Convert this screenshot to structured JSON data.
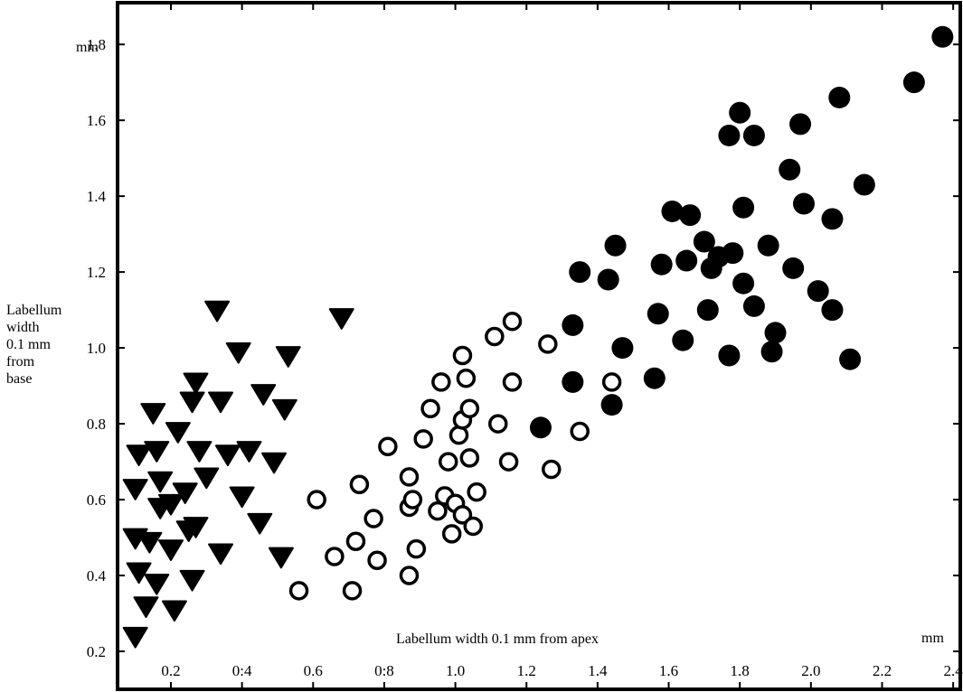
{
  "chart_data": {
    "type": "scatter",
    "title": "",
    "xlabel": "Labellum width 0.1 mm from apex",
    "ylabel": [
      "Labellum",
      "width",
      "0.1 mm",
      "from",
      "base"
    ],
    "x_unit": "mm",
    "y_unit": "mm",
    "xlim": [
      0.05,
      2.42
    ],
    "ylim": [
      0.1,
      1.91
    ],
    "x_ticks": [
      0.2,
      0.4,
      0.6,
      0.8,
      1.0,
      1.2,
      1.4,
      1.6,
      1.8,
      2.0,
      2.2,
      2.4
    ],
    "x_tick_labels": [
      "0.2",
      "0:4",
      "0.6",
      "0:8",
      "1.0",
      "1.2",
      "1.4",
      "1.6",
      "1.8",
      "2.0",
      "2.2",
      "2.4"
    ],
    "y_ticks": [
      0.2,
      0.4,
      0.6,
      0.8,
      1.0,
      1.2,
      1.4,
      1.6,
      1.8
    ],
    "y_tick_labels": [
      "0.2",
      "0.4",
      "0.6",
      "0.8",
      "1.0",
      "1.2",
      "1.4",
      "1.6",
      "1.8"
    ],
    "grid": false,
    "legend": "none",
    "series": [
      {
        "marker": "filled-triangle-down",
        "color": "#000000",
        "points": [
          [
            0.1,
            0.24
          ],
          [
            0.1,
            0.5
          ],
          [
            0.1,
            0.63
          ],
          [
            0.11,
            0.41
          ],
          [
            0.11,
            0.72
          ],
          [
            0.13,
            0.32
          ],
          [
            0.14,
            0.49
          ],
          [
            0.15,
            0.83
          ],
          [
            0.16,
            0.73
          ],
          [
            0.16,
            0.38
          ],
          [
            0.17,
            0.65
          ],
          [
            0.17,
            0.58
          ],
          [
            0.2,
            0.47
          ],
          [
            0.2,
            0.59
          ],
          [
            0.21,
            0.31
          ],
          [
            0.22,
            0.78
          ],
          [
            0.24,
            0.62
          ],
          [
            0.25,
            0.52
          ],
          [
            0.26,
            0.39
          ],
          [
            0.26,
            0.86
          ],
          [
            0.27,
            0.91
          ],
          [
            0.27,
            0.53
          ],
          [
            0.28,
            0.73
          ],
          [
            0.3,
            0.66
          ],
          [
            0.33,
            1.1
          ],
          [
            0.34,
            0.46
          ],
          [
            0.34,
            0.86
          ],
          [
            0.36,
            0.72
          ],
          [
            0.39,
            0.99
          ],
          [
            0.4,
            0.61
          ],
          [
            0.42,
            0.73
          ],
          [
            0.45,
            0.54
          ],
          [
            0.46,
            0.88
          ],
          [
            0.49,
            0.7
          ],
          [
            0.51,
            0.45
          ],
          [
            0.52,
            0.84
          ],
          [
            0.53,
            0.98
          ],
          [
            0.68,
            1.08
          ]
        ]
      },
      {
        "marker": "open-circle",
        "color": "#000000",
        "points": [
          [
            0.56,
            0.36
          ],
          [
            0.61,
            0.6
          ],
          [
            0.66,
            0.45
          ],
          [
            0.71,
            0.36
          ],
          [
            0.72,
            0.49
          ],
          [
            0.73,
            0.64
          ],
          [
            0.77,
            0.55
          ],
          [
            0.78,
            0.44
          ],
          [
            0.81,
            0.74
          ],
          [
            0.87,
            0.4
          ],
          [
            0.87,
            0.58
          ],
          [
            0.87,
            0.66
          ],
          [
            0.88,
            0.6
          ],
          [
            0.89,
            0.47
          ],
          [
            0.91,
            0.76
          ],
          [
            0.93,
            0.84
          ],
          [
            0.95,
            0.57
          ],
          [
            0.96,
            0.91
          ],
          [
            0.97,
            0.61
          ],
          [
            0.98,
            0.7
          ],
          [
            0.99,
            0.51
          ],
          [
            1.0,
            0.59
          ],
          [
            1.01,
            0.77
          ],
          [
            1.02,
            0.98
          ],
          [
            1.02,
            0.81
          ],
          [
            1.02,
            0.56
          ],
          [
            1.03,
            0.92
          ],
          [
            1.04,
            0.71
          ],
          [
            1.04,
            0.84
          ],
          [
            1.05,
            0.53
          ],
          [
            1.06,
            0.62
          ],
          [
            1.11,
            1.03
          ],
          [
            1.12,
            0.8
          ],
          [
            1.15,
            0.7
          ],
          [
            1.16,
            1.07
          ],
          [
            1.16,
            0.91
          ],
          [
            1.26,
            1.01
          ],
          [
            1.27,
            0.68
          ],
          [
            1.35,
            0.78
          ],
          [
            1.44,
            0.91
          ]
        ]
      },
      {
        "marker": "filled-circle",
        "color": "#000000",
        "points": [
          [
            1.24,
            0.79
          ],
          [
            1.33,
            1.06
          ],
          [
            1.33,
            0.91
          ],
          [
            1.35,
            1.2
          ],
          [
            1.43,
            1.18
          ],
          [
            1.44,
            0.85
          ],
          [
            1.45,
            1.27
          ],
          [
            1.47,
            1.0
          ],
          [
            1.56,
            0.92
          ],
          [
            1.57,
            1.09
          ],
          [
            1.58,
            1.22
          ],
          [
            1.61,
            1.36
          ],
          [
            1.64,
            1.02
          ],
          [
            1.65,
            1.23
          ],
          [
            1.66,
            1.35
          ],
          [
            1.7,
            1.28
          ],
          [
            1.71,
            1.1
          ],
          [
            1.72,
            1.21
          ],
          [
            1.74,
            1.24
          ],
          [
            1.77,
            1.56
          ],
          [
            1.77,
            0.98
          ],
          [
            1.78,
            1.25
          ],
          [
            1.8,
            1.62
          ],
          [
            1.81,
            1.17
          ],
          [
            1.81,
            1.37
          ],
          [
            1.84,
            1.56
          ],
          [
            1.84,
            1.11
          ],
          [
            1.88,
            1.27
          ],
          [
            1.89,
            0.99
          ],
          [
            1.9,
            1.04
          ],
          [
            1.94,
            1.47
          ],
          [
            1.95,
            1.21
          ],
          [
            1.97,
            1.59
          ],
          [
            1.98,
            1.38
          ],
          [
            2.02,
            1.15
          ],
          [
            2.06,
            1.1
          ],
          [
            2.06,
            1.34
          ],
          [
            2.08,
            1.66
          ],
          [
            2.11,
            0.97
          ],
          [
            2.15,
            1.43
          ],
          [
            2.29,
            1.7
          ],
          [
            2.37,
            1.82
          ]
        ]
      }
    ]
  }
}
